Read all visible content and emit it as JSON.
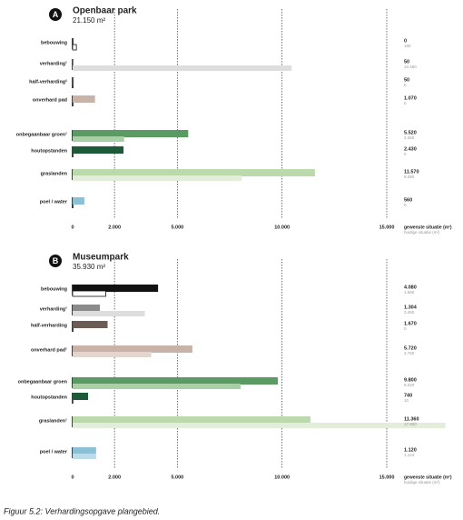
{
  "chart_data": [
    {
      "type": "hbar",
      "label": "A",
      "title": "Openbaar park",
      "subtitle": "21.150 m²",
      "categories": [
        "bebouwing",
        "verharding¹",
        "half-verharding²",
        "onverhard pad",
        "onbegaanbaar groen¹",
        "houtopstanden",
        "graslanden",
        "poel / water"
      ],
      "series": [
        {
          "name": "gewenste situatie (m²)",
          "colors": [
            "#111111",
            "#8a8a8a",
            "#6b5d55",
            "#c9b3a8",
            "#5a9a63",
            "#1d5a3a",
            "#bcd9ae",
            "#8cc0d6"
          ],
          "values": [
            0,
            50,
            50,
            1070,
            5520,
            2430,
            11570,
            560
          ],
          "value_labels": [
            "0",
            "50",
            "50",
            "1.070",
            "5.520",
            "2.430",
            "11.570",
            "560"
          ]
        },
        {
          "name": "huidige situatie (m²)",
          "colors": [
            "#ffffff",
            "#dddddd",
            "#b8aea8",
            "#e2d6cf",
            "#a8cfa5",
            "#7fa88f",
            "#e2eed9",
            "#bddbe8"
          ],
          "values": [
            180,
            10460,
            0,
            0,
            2460,
            0,
            8080,
            0
          ],
          "value_labels": [
            "180",
            "10.460",
            "0",
            "0",
            "2.460",
            "0",
            "8.080",
            "0"
          ]
        }
      ],
      "xlim": [
        0,
        15000
      ],
      "xticks": [
        0,
        {
          "value": 2000,
          "label": "2.000"
        },
        {
          "value": 5000,
          "label": "5.000"
        },
        {
          "value": 10000,
          "label": "10.000"
        },
        {
          "value": 15000,
          "label": "15.000"
        }
      ]
    },
    {
      "type": "hbar",
      "label": "B",
      "title": "Museumpark",
      "subtitle": "35.930 m²",
      "categories": [
        "bebouwing",
        "verharding¹",
        "half-verharding",
        "onverhard pad¹",
        "onbegaanbaar groen",
        "houtopstanden",
        "graslanden¹",
        "poel / water"
      ],
      "series": [
        {
          "name": "gewenste situatie (m²)",
          "colors": [
            "#111111",
            "#8a8a8a",
            "#6b5d55",
            "#c9b3a8",
            "#5a9a63",
            "#1d5a3a",
            "#bcd9ae",
            "#8cc0d6"
          ],
          "values": [
            4080,
            1304,
            1670,
            5720,
            9800,
            740,
            11360,
            1120
          ],
          "value_labels": [
            "4.080",
            "1.304",
            "1.670",
            "5.720",
            "9.800",
            "740",
            "11.360",
            "1.120"
          ]
        },
        {
          "name": "huidige situatie (m²)",
          "colors": [
            "#ffffff",
            "#dddddd",
            "#b8aea8",
            "#e2d6cf",
            "#a8cfa5",
            "#7fa88f",
            "#e2eed9",
            "#bddbe8"
          ],
          "values": [
            1580,
            3450,
            0,
            3750,
            8020,
            10,
            17800,
            1124
          ],
          "value_labels": [
            "1.580",
            "3.450",
            "0",
            "3.750",
            "8.020",
            "10",
            "17.800",
            "1.124"
          ]
        }
      ],
      "xlim": [
        0,
        15000
      ],
      "xticks": [
        0,
        {
          "value": 2000,
          "label": "2.000"
        },
        {
          "value": 5000,
          "label": "5.000"
        },
        {
          "value": 10000,
          "label": "10.000"
        },
        {
          "value": 15000,
          "label": "15.000"
        }
      ]
    }
  ],
  "caption": "Figuur 5.2: Verhardingsopgave plangebied."
}
